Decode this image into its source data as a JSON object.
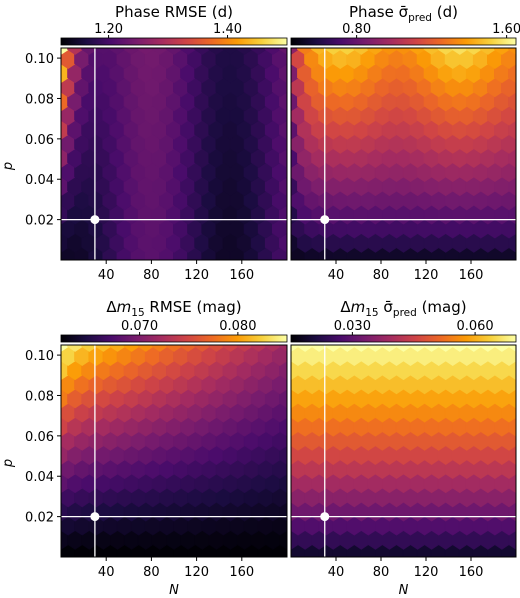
{
  "figure": {
    "y_label": "p",
    "x_label": "N"
  },
  "colormaps": {
    "inferno": [
      "#000004",
      "#1b0c41",
      "#4a0c6b",
      "#781c6d",
      "#a52c60",
      "#cf4446",
      "#ed6925",
      "#fb9b06",
      "#f7d13d",
      "#fcffa4"
    ],
    "background": "#0d0820",
    "crosshair": "#ffffff",
    "marker": "#ffffff"
  },
  "chart_data": [
    {
      "type": "heatmap",
      "title": "Phase RMSE (d)",
      "title_parts": [
        "Phase RMSE (d)"
      ],
      "colorbar": {
        "ticks": [
          "1.20",
          "1.40"
        ],
        "range": [
          1.12,
          1.5
        ]
      },
      "xlabel": "",
      "ylabel": "p",
      "xticks": [
        "40",
        "80",
        "120",
        "160"
      ],
      "yticks": [
        "0.10",
        "0.08",
        "0.06",
        "0.04",
        "0.02"
      ],
      "xlim": [
        0,
        200
      ],
      "ylim": [
        0.0,
        0.105
      ],
      "selected_point": {
        "N": 30,
        "p": 0.02
      },
      "pattern": "phase_rmse",
      "value_range": [
        1.12,
        1.5
      ]
    },
    {
      "type": "heatmap",
      "title": "Phase σ̄pred (d)",
      "title_parts": [
        "Phase ",
        "σ̄",
        "pred",
        " (d)"
      ],
      "colorbar": {
        "ticks": [
          "0.80",
          "1.60"
        ],
        "range": [
          0.45,
          1.65
        ]
      },
      "xlabel": "",
      "ylabel": "",
      "xticks": [
        "40",
        "80",
        "120",
        "160"
      ],
      "yticks": [],
      "xlim": [
        0,
        200
      ],
      "ylim": [
        0.0,
        0.105
      ],
      "selected_point": {
        "N": 30,
        "p": 0.02
      },
      "pattern": "phase_sigma",
      "value_range": [
        0.45,
        1.65
      ]
    },
    {
      "type": "heatmap",
      "title": "Δm15 RMSE (mag)",
      "title_parts": [
        "Δ",
        "m",
        "15",
        " RMSE (mag)"
      ],
      "colorbar": {
        "ticks": [
          "0.070",
          "0.080"
        ],
        "range": [
          0.062,
          0.085
        ]
      },
      "xlabel": "N",
      "ylabel": "p",
      "xticks": [
        "40",
        "80",
        "120",
        "160"
      ],
      "yticks": [
        "0.10",
        "0.08",
        "0.06",
        "0.04",
        "0.02"
      ],
      "xlim": [
        0,
        200
      ],
      "ylim": [
        0.0,
        0.105
      ],
      "selected_point": {
        "N": 30,
        "p": 0.02
      },
      "pattern": "dm15_rmse",
      "value_range": [
        0.062,
        0.085
      ]
    },
    {
      "type": "heatmap",
      "title": "Δm15 σ̄pred (mag)",
      "title_parts": [
        "Δ",
        "m",
        "15",
        " ",
        "σ̄",
        "pred",
        " (mag)"
      ],
      "colorbar": {
        "ticks": [
          "0.030",
          "0.060"
        ],
        "range": [
          0.015,
          0.07
        ]
      },
      "xlabel": "N",
      "ylabel": "",
      "xticks": [
        "40",
        "80",
        "120",
        "160"
      ],
      "yticks": [],
      "xlim": [
        0,
        200
      ],
      "ylim": [
        0.0,
        0.105
      ],
      "selected_point": {
        "N": 30,
        "p": 0.02
      },
      "pattern": "dm15_sigma",
      "value_range": [
        0.015,
        0.07
      ]
    }
  ]
}
